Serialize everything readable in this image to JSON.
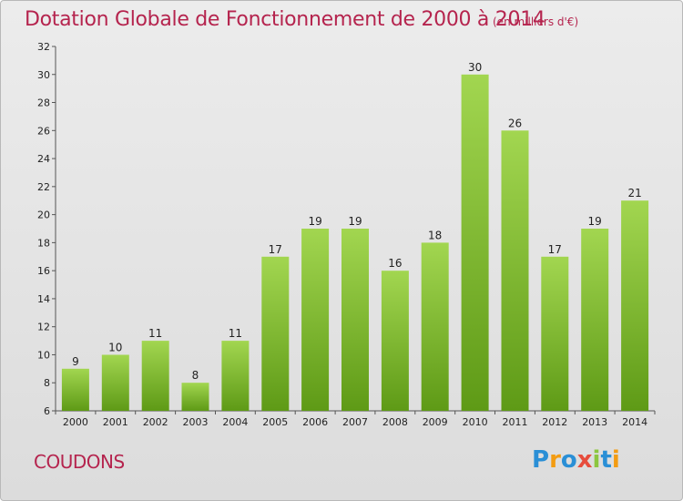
{
  "chart_data": {
    "type": "bar",
    "title": "Dotation Globale de Fonctionnement de 2000 à 2014",
    "unit_note": "(en milliers d'€)",
    "categories": [
      "2000",
      "2001",
      "2002",
      "2003",
      "2004",
      "2005",
      "2006",
      "2007",
      "2008",
      "2009",
      "2010",
      "2011",
      "2012",
      "2013",
      "2014"
    ],
    "values": [
      9,
      10,
      11,
      8,
      11,
      17,
      19,
      19,
      16,
      18,
      30,
      26,
      17,
      19,
      21
    ],
    "ylim": [
      6,
      32
    ],
    "yticks": [
      6,
      8,
      10,
      12,
      14,
      16,
      18,
      20,
      22,
      24,
      26,
      28,
      30,
      32
    ],
    "grid": false,
    "colors": {
      "bar_top": "#9fd34e",
      "bar_bottom": "#5e9a16",
      "title": "#b5244e"
    }
  },
  "commune": "COUDONS",
  "logo": {
    "letters": [
      "P",
      "r",
      "o",
      "x",
      "i",
      "t",
      "i"
    ],
    "colors": [
      "#2a8fd6",
      "#f39c12",
      "#2a8fd6",
      "#e74c3c",
      "#8cc63f",
      "#2a8fd6",
      "#f39c12"
    ]
  }
}
